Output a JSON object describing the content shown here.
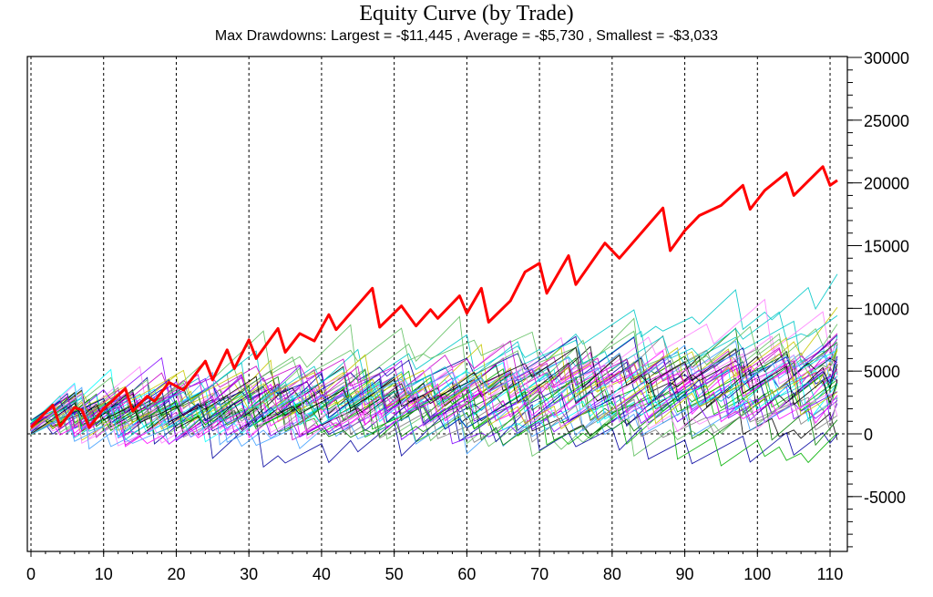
{
  "chart_data": {
    "type": "line",
    "title": "Equity Curve (by Trade)",
    "subtitle": "Max Drawdowns:  Largest = -$11,445 , Average = -$5,730 , Smallest = -$3,033",
    "xlabel": "",
    "ylabel": "",
    "xlim": [
      0,
      111
    ],
    "ylim": [
      -9000,
      30500
    ],
    "x_ticks": [
      0,
      10,
      20,
      30,
      40,
      50,
      60,
      70,
      80,
      90,
      100,
      110
    ],
    "x_tick_labels": [
      "0",
      "10",
      "20",
      "30",
      "40",
      "50",
      "60",
      "70",
      "80",
      "90",
      "100",
      "110"
    ],
    "y_ticks": [
      -5000,
      0,
      5000,
      10000,
      15000,
      20000,
      25000,
      30000
    ],
    "y_tick_labels": [
      "-5000",
      "0",
      "5000",
      "10000",
      "15000",
      "20000",
      "25000",
      "30000"
    ],
    "y_axis_side": "right",
    "grid": true,
    "grid_style": "dotted",
    "highlight_series": {
      "color": "#ff0000",
      "points": [
        [
          0,
          500
        ],
        [
          3,
          2300
        ],
        [
          4,
          600
        ],
        [
          6,
          2100
        ],
        [
          7,
          1900
        ],
        [
          8,
          500
        ],
        [
          10,
          2000
        ],
        [
          13,
          3600
        ],
        [
          14,
          1800
        ],
        [
          16,
          3000
        ],
        [
          17,
          2600
        ],
        [
          19,
          4100
        ],
        [
          21,
          3500
        ],
        [
          24,
          5800
        ],
        [
          25,
          4300
        ],
        [
          27,
          6700
        ],
        [
          28,
          5200
        ],
        [
          30,
          7500
        ],
        [
          31,
          6000
        ],
        [
          34,
          8400
        ],
        [
          35,
          6500
        ],
        [
          37,
          8000
        ],
        [
          39,
          7400
        ],
        [
          41,
          9500
        ],
        [
          42,
          8300
        ],
        [
          47,
          11600
        ],
        [
          48,
          8500
        ],
        [
          51,
          10200
        ],
        [
          53,
          8600
        ],
        [
          55,
          9900
        ],
        [
          56,
          9200
        ],
        [
          59,
          11000
        ],
        [
          60,
          9600
        ],
        [
          62,
          11600
        ],
        [
          63,
          8900
        ],
        [
          66,
          10600
        ],
        [
          68,
          12900
        ],
        [
          70,
          13600
        ],
        [
          71,
          11200
        ],
        [
          74,
          14200
        ],
        [
          75,
          11900
        ],
        [
          79,
          15200
        ],
        [
          81,
          14000
        ],
        [
          87,
          18000
        ],
        [
          88,
          14600
        ],
        [
          90,
          16200
        ],
        [
          92,
          17400
        ],
        [
          95,
          18200
        ],
        [
          98,
          19800
        ],
        [
          99,
          17900
        ],
        [
          101,
          19400
        ],
        [
          104,
          20800
        ],
        [
          105,
          19000
        ],
        [
          109,
          21300
        ],
        [
          110,
          19800
        ],
        [
          111,
          20200
        ]
      ]
    },
    "background_simulations": 50,
    "background_palette": [
      "#0000a0",
      "#00b000",
      "#00c8c8",
      "#c800c8",
      "#c8c800",
      "#000000",
      "#ff80ff",
      "#40a0ff",
      "#008000",
      "#8000ff",
      "#00ffff",
      "#808080",
      "#ff00ff",
      "#60c060"
    ]
  }
}
